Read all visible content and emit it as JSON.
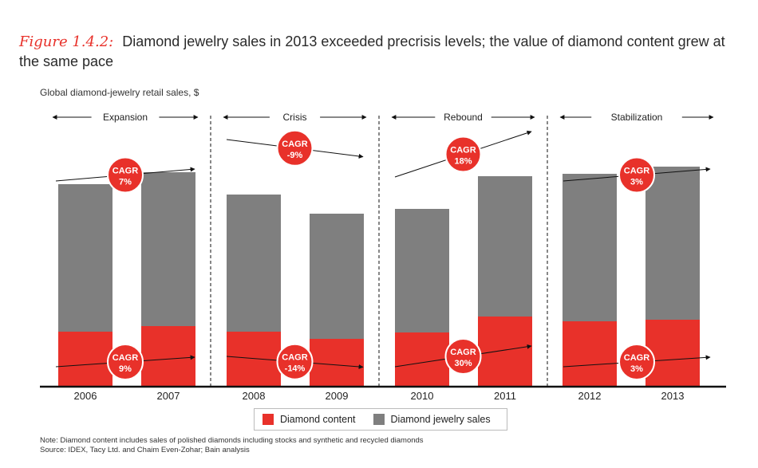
{
  "title": {
    "prefix": "Figure 1.4.2:",
    "text": "Diamond jewelry sales in 2013 exceeded precrisis levels; the value of diamond content grew at the same pace"
  },
  "subtitle": "Global diamond-jewelry retail sales, $",
  "colors": {
    "diamond_content": "#e8312a",
    "jewelry_sales": "#7f7f7f",
    "accent": "#e8312a"
  },
  "chart_data": {
    "type": "bar",
    "stacked": true,
    "categories": [
      "2006",
      "2007",
      "2008",
      "2009",
      "2010",
      "2011",
      "2012",
      "2013"
    ],
    "series": [
      {
        "name": "Diamond content",
        "values": [
          68,
          75,
          68,
          59,
          67,
          87,
          81,
          83
        ]
      },
      {
        "name": "Diamond jewelry sales",
        "values": [
          185,
          193,
          172,
          157,
          155,
          176,
          185,
          192
        ]
      }
    ],
    "ylim": [
      0,
      280
    ],
    "xlabel": "",
    "ylabel": "Global diamond-jewelry retail sales, $",
    "phases": [
      {
        "label": "Expansion",
        "from": 0,
        "to": 1
      },
      {
        "label": "Crisis",
        "from": 2,
        "to": 3
      },
      {
        "label": "Rebound",
        "from": 4,
        "to": 5
      },
      {
        "label": "Stabilization",
        "from": 6,
        "to": 7
      }
    ],
    "cagr_sales": [
      {
        "label": "CAGR",
        "value": "7%"
      },
      {
        "label": "CAGR",
        "value": "-9%"
      },
      {
        "label": "CAGR",
        "value": "18%"
      },
      {
        "label": "CAGR",
        "value": "3%"
      }
    ],
    "cagr_content": [
      {
        "label": "CAGR",
        "value": "9%"
      },
      {
        "label": "CAGR",
        "value": "-14%"
      },
      {
        "label": "CAGR",
        "value": "30%"
      },
      {
        "label": "CAGR",
        "value": "3%"
      }
    ]
  },
  "legend": {
    "diamond_content": "Diamond content",
    "jewelry_sales": "Diamond jewelry sales"
  },
  "notes": {
    "note": "Note:  Diamond content includes sales of polished diamonds including stocks and synthetic and recycled diamonds",
    "source": "Source:  IDEX, Tacy Ltd. and Chaim Even-Zohar; Bain analysis"
  }
}
